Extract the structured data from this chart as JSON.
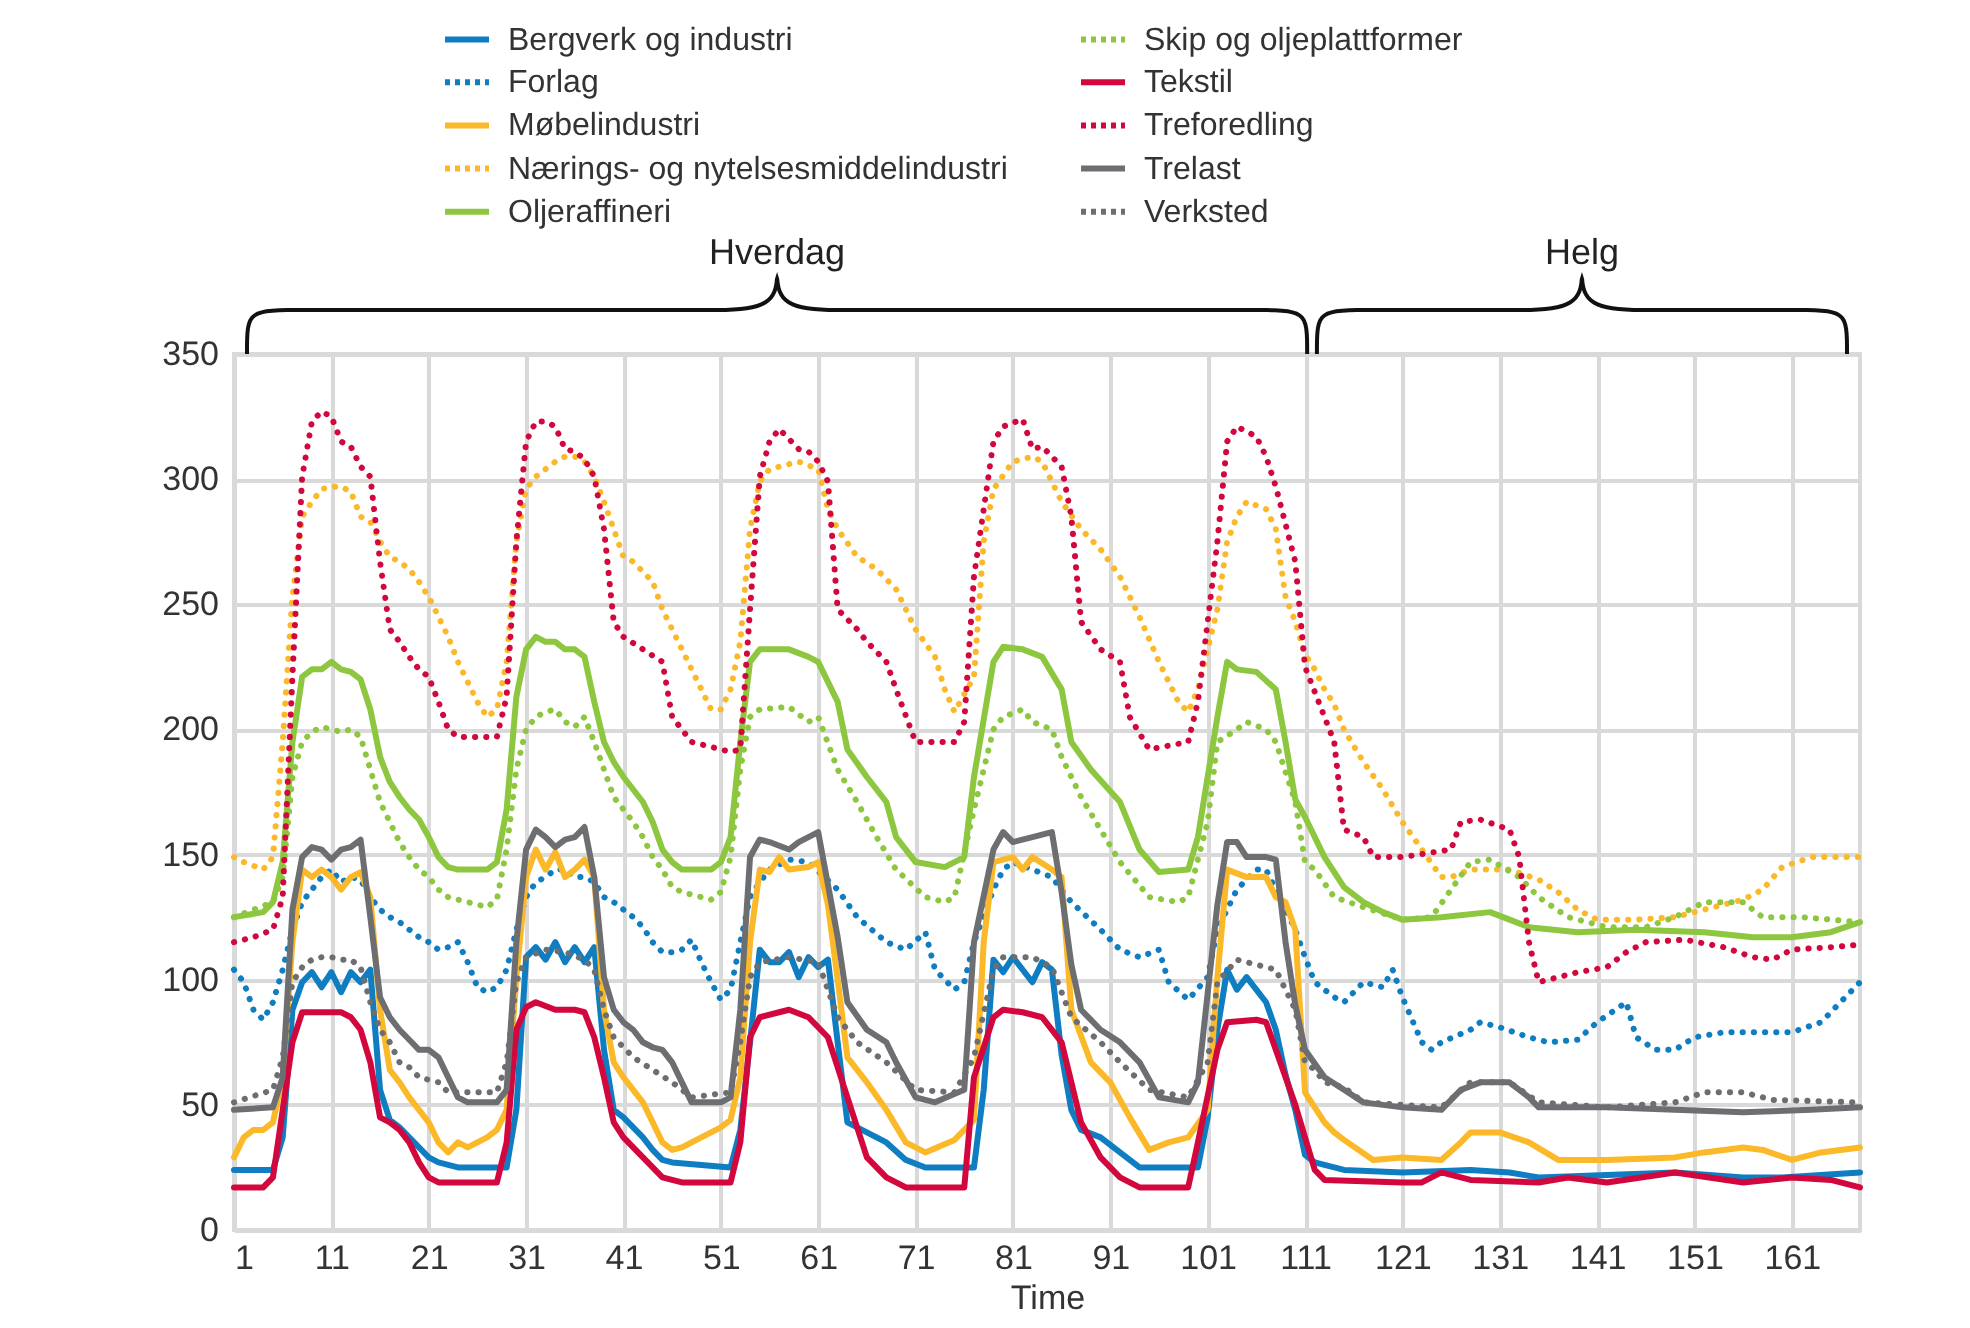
{
  "chart_data": {
    "type": "line",
    "xlabel": "Time",
    "xlim": [
      1,
      168
    ],
    "xticks": [
      1,
      11,
      21,
      31,
      41,
      51,
      61,
      71,
      81,
      91,
      101,
      111,
      121,
      131,
      141,
      151,
      161
    ],
    "ylim": [
      0,
      350
    ],
    "yticks": [
      0,
      50,
      100,
      150,
      200,
      250,
      300,
      350
    ],
    "grid": true,
    "legend": "top",
    "annotations": [
      "Hverdag",
      "Helg"
    ],
    "series": [
      {
        "name": "Bergverk og industri",
        "color": "#0e7dc2",
        "line_style": "solid",
        "x": [
          1,
          5,
          6,
          7,
          8,
          9,
          10,
          11,
          12,
          13,
          14,
          15,
          16,
          17,
          18,
          19,
          20,
          21,
          22,
          24,
          29,
          30,
          31,
          32,
          33,
          34,
          35,
          36,
          37,
          38,
          39,
          40,
          41,
          42,
          43,
          44,
          45,
          46,
          52,
          53,
          54,
          55,
          56,
          57,
          58,
          59,
          60,
          61,
          62,
          63,
          64,
          66,
          68,
          70,
          72,
          77,
          78,
          79,
          80,
          81,
          83,
          84,
          85,
          86,
          87,
          88,
          90,
          92,
          94,
          100,
          101,
          102,
          103,
          104,
          105,
          107,
          108,
          109,
          110,
          111,
          112,
          115,
          121,
          128,
          132,
          135,
          142,
          149,
          156,
          160,
          168
        ],
        "values": [
          24,
          24,
          37,
          88,
          99,
          103,
          97,
          103,
          95,
          103,
          99,
          104,
          56,
          44,
          41,
          37,
          33,
          29,
          27,
          25,
          25,
          48,
          109,
          113,
          108,
          115,
          107,
          113,
          107,
          113,
          72,
          48,
          45,
          41,
          37,
          32,
          28,
          27,
          25,
          40,
          75,
          112,
          107,
          107,
          111,
          101,
          109,
          105,
          108,
          75,
          43,
          39,
          35,
          28,
          25,
          25,
          56,
          108,
          103,
          109,
          99,
          107,
          104,
          70,
          48,
          40,
          37,
          31,
          25,
          25,
          45,
          80,
          104,
          96,
          101,
          91,
          80,
          62,
          48,
          30,
          27,
          24,
          23,
          24,
          23,
          21,
          22,
          23,
          21,
          21,
          23
        ]
      },
      {
        "name": "Forlag",
        "color": "#0e7dc2",
        "line_style": "dotted",
        "x": [
          1,
          2,
          3,
          4,
          5,
          6,
          7,
          8,
          9,
          10,
          11,
          12,
          13,
          14,
          15,
          16,
          17,
          18,
          19,
          20,
          21,
          22,
          23,
          24,
          25,
          26,
          27,
          28,
          29,
          30,
          31,
          32,
          33,
          34,
          35,
          36,
          37,
          38,
          39,
          40,
          41,
          42,
          43,
          44,
          45,
          46,
          47,
          48,
          49,
          50,
          51,
          52,
          53,
          54,
          55,
          56,
          58,
          60,
          63,
          65,
          68,
          70,
          72,
          73,
          75,
          76,
          77,
          79,
          80,
          81,
          83,
          85,
          87,
          90,
          92,
          94,
          96,
          97,
          99,
          101,
          102,
          104,
          106,
          107,
          108,
          110,
          111,
          112,
          114,
          115,
          117,
          119,
          120,
          121,
          123,
          124,
          125,
          128,
          129,
          131,
          134,
          136,
          139,
          141,
          144,
          145,
          147,
          149,
          151,
          154,
          158,
          161,
          164,
          166,
          168
        ],
        "values": [
          104,
          99,
          88,
          84,
          91,
          104,
          120,
          131,
          136,
          141,
          144,
          139,
          141,
          140,
          133,
          128,
          125,
          123,
          120,
          117,
          115,
          112,
          113,
          115,
          107,
          97,
          95,
          97,
          104,
          120,
          133,
          139,
          141,
          144,
          144,
          141,
          141,
          139,
          133,
          131,
          128,
          125,
          121,
          115,
          111,
          111,
          112,
          116,
          107,
          99,
          92,
          96,
          115,
          133,
          139,
          144,
          148,
          147,
          136,
          125,
          115,
          112,
          119,
          104,
          96,
          99,
          115,
          136,
          144,
          147,
          144,
          141,
          131,
          120,
          112,
          109,
          112,
          99,
          92,
          101,
          120,
          136,
          144,
          144,
          136,
          120,
          109,
          99,
          93,
          91,
          99,
          97,
          104,
          93,
          75,
          72,
          75,
          80,
          83,
          81,
          77,
          75,
          76,
          83,
          91,
          77,
          72,
          72,
          77,
          79,
          79,
          79,
          83,
          91,
          99
        ]
      },
      {
        "name": "Møbelindustri",
        "color": "#fbb829",
        "line_style": "solid",
        "x": [
          1,
          2,
          3,
          4,
          5,
          6,
          7,
          8,
          9,
          10,
          11,
          12,
          13,
          14,
          15,
          16,
          17,
          18,
          19,
          20,
          21,
          22,
          23,
          24,
          25,
          26,
          27,
          28,
          29,
          30,
          31,
          32,
          33,
          34,
          35,
          36,
          37,
          38,
          39,
          40,
          41,
          42,
          43,
          44,
          45,
          46,
          47,
          48,
          49,
          50,
          51,
          52,
          53,
          54,
          55,
          56,
          57,
          58,
          60,
          61,
          62,
          63,
          64,
          66,
          68,
          70,
          72,
          75,
          77,
          78,
          79,
          81,
          82,
          83,
          85,
          86,
          87,
          89,
          91,
          93,
          95,
          97,
          99,
          101,
          102,
          103,
          105,
          107,
          108,
          109,
          110,
          111,
          113,
          114,
          115,
          118,
          121,
          125,
          127,
          128,
          131,
          134,
          137,
          142,
          149,
          152,
          156,
          158,
          161,
          164,
          168
        ],
        "values": [
          29,
          37,
          40,
          40,
          43,
          61,
          115,
          144,
          141,
          144,
          141,
          136,
          141,
          143,
          133,
          88,
          64,
          59,
          53,
          48,
          43,
          35,
          31,
          35,
          33,
          35,
          37,
          40,
          48,
          101,
          141,
          152,
          144,
          151,
          141,
          144,
          148,
          141,
          88,
          67,
          61,
          56,
          51,
          43,
          35,
          32,
          33,
          35,
          37,
          39,
          41,
          44,
          61,
          115,
          144,
          143,
          149,
          144,
          145,
          147,
          130,
          100,
          69,
          59,
          48,
          35,
          31,
          36,
          44,
          115,
          147,
          149,
          144,
          149,
          144,
          141,
          88,
          67,
          59,
          45,
          32,
          35,
          37,
          48,
          101,
          144,
          141,
          141,
          133,
          131,
          120,
          55,
          43,
          39,
          36,
          28,
          29,
          28,
          35,
          39,
          39,
          35,
          28,
          28,
          29,
          31,
          33,
          32,
          28,
          31,
          33
        ]
      },
      {
        "name": "Nærings- og nytelsesmiddelindustri",
        "color": "#fbb829",
        "line_style": "dotted",
        "x": [
          1,
          2,
          4,
          5,
          6,
          7,
          8,
          9,
          10,
          11,
          12,
          13,
          14,
          15,
          16,
          17,
          18,
          19,
          20,
          21,
          22,
          23,
          24,
          26,
          27,
          28,
          29,
          30,
          31,
          32,
          33,
          34,
          35,
          36,
          37,
          38,
          39,
          40,
          41,
          42,
          43,
          44,
          45,
          46,
          47,
          48,
          49,
          50,
          51,
          52,
          53,
          54,
          55,
          56,
          57,
          59,
          61,
          62,
          63,
          65,
          67,
          69,
          71,
          73,
          74,
          75,
          77,
          78,
          79,
          81,
          83,
          84,
          86,
          88,
          90,
          92,
          94,
          96,
          98,
          99,
          100,
          102,
          103,
          104,
          105,
          107,
          108,
          109,
          110,
          111,
          112,
          113,
          114,
          115,
          117,
          119,
          121,
          123,
          125,
          126,
          128,
          132,
          135,
          137,
          139,
          141,
          145,
          149,
          152,
          156,
          158,
          160,
          163,
          168
        ],
        "values": [
          149,
          147,
          144,
          149,
          195,
          253,
          285,
          291,
          296,
          297,
          297,
          295,
          285,
          283,
          275,
          269,
          267,
          264,
          259,
          253,
          245,
          237,
          227,
          211,
          205,
          208,
          227,
          275,
          296,
          301,
          304,
          307,
          309,
          309,
          307,
          301,
          291,
          280,
          269,
          267,
          263,
          259,
          248,
          240,
          232,
          224,
          216,
          208,
          208,
          216,
          235,
          280,
          299,
          304,
          305,
          307,
          304,
          288,
          280,
          269,
          264,
          256,
          240,
          229,
          216,
          207,
          221,
          275,
          296,
          307,
          309,
          307,
          291,
          280,
          272,
          261,
          245,
          227,
          211,
          207,
          216,
          248,
          275,
          285,
          291,
          288,
          280,
          253,
          243,
          230,
          224,
          216,
          210,
          200,
          187,
          176,
          163,
          152,
          141,
          141,
          144,
          144,
          140,
          135,
          128,
          124,
          124,
          125,
          128,
          132,
          136,
          145,
          149,
          149
        ]
      },
      {
        "name": "Oljeraffineri",
        "color": "#8dc63f",
        "line_style": "solid",
        "x": [
          1,
          4,
          5,
          6,
          7,
          8,
          9,
          10,
          11,
          12,
          13,
          14,
          15,
          16,
          17,
          18,
          19,
          20,
          21,
          22,
          23,
          24,
          27,
          28,
          29,
          30,
          31,
          32,
          33,
          34,
          35,
          36,
          37,
          38,
          39,
          40,
          41,
          42,
          43,
          44,
          45,
          46,
          47,
          50,
          51,
          52,
          53,
          54,
          55,
          57,
          58,
          60,
          61,
          63,
          64,
          66,
          68,
          69,
          71,
          74,
          76,
          77,
          79,
          80,
          82,
          84,
          86,
          87,
          89,
          92,
          94,
          96,
          99,
          100,
          102,
          103,
          104,
          106,
          108,
          109,
          110,
          111,
          113,
          115,
          117,
          119,
          121,
          125,
          130,
          134,
          139,
          145,
          152,
          157,
          161,
          165,
          168
        ],
        "values": [
          125,
          127,
          131,
          147,
          195,
          221,
          224,
          224,
          227,
          224,
          223,
          220,
          208,
          189,
          179,
          173,
          168,
          164,
          157,
          149,
          145,
          144,
          144,
          147,
          168,
          213,
          232,
          237,
          235,
          235,
          232,
          232,
          229,
          211,
          195,
          187,
          181,
          176,
          171,
          163,
          152,
          147,
          144,
          144,
          147,
          157,
          195,
          227,
          232,
          232,
          232,
          229,
          227,
          211,
          192,
          181,
          171,
          157,
          147,
          145,
          149,
          181,
          227,
          233,
          232,
          229,
          216,
          195,
          184,
          171,
          152,
          143,
          144,
          157,
          205,
          227,
          224,
          223,
          216,
          195,
          172,
          165,
          149,
          137,
          131,
          127,
          124,
          125,
          127,
          121,
          119,
          120,
          119,
          117,
          117,
          119,
          123
        ]
      },
      {
        "name": "Skip og oljeplattformer",
        "color": "#8dc63f",
        "line_style": "dotted",
        "x": [
          1,
          5,
          6,
          7,
          8,
          9,
          10,
          11,
          12,
          13,
          14,
          15,
          16,
          17,
          18,
          19,
          20,
          21,
          22,
          23,
          24,
          25,
          27,
          28,
          29,
          30,
          31,
          32,
          33,
          34,
          35,
          36,
          37,
          38,
          39,
          40,
          41,
          42,
          43,
          44,
          45,
          46,
          47,
          50,
          51,
          52,
          53,
          54,
          55,
          58,
          60,
          61,
          63,
          65,
          67,
          69,
          72,
          74,
          75,
          77,
          79,
          80,
          82,
          83,
          85,
          86,
          88,
          90,
          92,
          95,
          98,
          99,
          101,
          102,
          104,
          105,
          107,
          108,
          110,
          111,
          112,
          114,
          117,
          121,
          124,
          126,
          128,
          130,
          133,
          135,
          138,
          142,
          146,
          149,
          152,
          156,
          158,
          162,
          168
        ],
        "values": [
          125,
          131,
          141,
          181,
          195,
          199,
          201,
          200,
          199,
          200,
          197,
          184,
          171,
          163,
          155,
          149,
          144,
          141,
          136,
          133,
          132,
          131,
          129,
          132,
          152,
          184,
          200,
          205,
          207,
          208,
          203,
          201,
          205,
          195,
          184,
          173,
          168,
          163,
          157,
          149,
          144,
          137,
          135,
          132,
          135,
          149,
          184,
          205,
          208,
          209,
          203,
          205,
          184,
          171,
          157,
          144,
          133,
          131,
          133,
          168,
          200,
          205,
          208,
          203,
          200,
          189,
          173,
          160,
          147,
          133,
          131,
          133,
          163,
          195,
          200,
          203,
          200,
          195,
          171,
          147,
          144,
          133,
          129,
          124,
          125,
          136,
          147,
          148,
          141,
          133,
          125,
          121,
          121,
          125,
          131,
          131,
          125,
          125,
          123
        ]
      },
      {
        "name": "Tekstil",
        "color": "#d2073e",
        "line_style": "solid",
        "x": [
          1,
          4,
          5,
          6,
          7,
          8,
          12,
          13,
          14,
          15,
          16,
          17,
          18,
          19,
          20,
          21,
          22,
          28,
          29,
          30,
          31,
          32,
          34,
          36,
          37,
          38,
          39,
          40,
          41,
          43,
          44,
          45,
          47,
          52,
          53,
          54,
          55,
          58,
          60,
          62,
          64,
          66,
          68,
          70,
          76,
          77,
          79,
          80,
          82,
          84,
          86,
          88,
          90,
          92,
          94,
          99,
          100,
          102,
          103,
          106,
          107,
          108,
          110,
          112,
          113,
          121,
          123,
          125,
          128,
          135,
          138,
          142,
          149,
          156,
          161,
          165,
          168
        ],
        "values": [
          17,
          17,
          21,
          48,
          75,
          87,
          87,
          85,
          80,
          67,
          45,
          43,
          40,
          35,
          27,
          21,
          19,
          19,
          35,
          80,
          89,
          91,
          88,
          88,
          87,
          77,
          61,
          43,
          37,
          29,
          25,
          21,
          19,
          19,
          35,
          77,
          85,
          88,
          85,
          77,
          53,
          29,
          21,
          17,
          17,
          61,
          85,
          88,
          87,
          85,
          75,
          43,
          29,
          21,
          17,
          17,
          35,
          72,
          83,
          84,
          83,
          72,
          50,
          24,
          20,
          19,
          19,
          23,
          20,
          19,
          21,
          19,
          23,
          19,
          21,
          20,
          17
        ]
      },
      {
        "name": "Treforedling",
        "color": "#d2073e",
        "line_style": "dotted",
        "x": [
          1,
          3,
          5,
          6,
          7,
          8,
          9,
          10,
          11,
          12,
          13,
          14,
          15,
          16,
          17,
          18,
          19,
          20,
          21,
          22,
          23,
          24,
          25,
          28,
          29,
          30,
          31,
          32,
          33,
          34,
          35,
          36,
          37,
          38,
          39,
          40,
          41,
          43,
          45,
          46,
          48,
          52,
          53,
          54,
          55,
          56,
          57,
          59,
          60,
          61,
          62,
          63,
          65,
          66,
          68,
          69,
          71,
          75,
          76,
          77,
          79,
          80,
          82,
          83,
          84,
          86,
          87,
          88,
          90,
          92,
          93,
          95,
          99,
          100,
          102,
          103,
          104,
          106,
          107,
          108,
          110,
          111,
          113,
          114,
          115,
          117,
          118,
          121,
          126,
          127,
          129,
          132,
          133,
          134,
          135,
          139,
          142,
          144,
          146,
          150,
          154,
          157,
          159,
          161,
          165,
          168
        ],
        "values": [
          115,
          117,
          120,
          133,
          221,
          301,
          323,
          327,
          325,
          315,
          313,
          305,
          301,
          267,
          240,
          235,
          229,
          224,
          221,
          211,
          200,
          197,
          197,
          197,
          213,
          275,
          315,
          323,
          323,
          321,
          312,
          311,
          308,
          301,
          280,
          243,
          237,
          232,
          227,
          205,
          195,
          191,
          192,
          248,
          301,
          315,
          320,
          312,
          311,
          307,
          299,
          248,
          240,
          235,
          227,
          216,
          195,
          195,
          203,
          261,
          315,
          321,
          324,
          312,
          313,
          305,
          285,
          243,
          232,
          227,
          205,
          192,
          195,
          211,
          275,
          315,
          321,
          317,
          309,
          297,
          267,
          225,
          205,
          195,
          160,
          157,
          149,
          149,
          152,
          163,
          164,
          160,
          149,
          115,
          99,
          103,
          105,
          111,
          115,
          116,
          113,
          109,
          108,
          112,
          113,
          114
        ]
      },
      {
        "name": "Trelast",
        "color": "#6d6e71",
        "line_style": "solid",
        "x": [
          1,
          5,
          6,
          7,
          8,
          9,
          10,
          11,
          12,
          13,
          14,
          15,
          16,
          17,
          18,
          19,
          20,
          21,
          22,
          23,
          24,
          25,
          28,
          29,
          30,
          31,
          32,
          33,
          34,
          35,
          36,
          37,
          38,
          39,
          40,
          41,
          42,
          43,
          44,
          45,
          46,
          47,
          48,
          51,
          52,
          53,
          54,
          55,
          56,
          58,
          59,
          61,
          63,
          64,
          66,
          68,
          69,
          71,
          73,
          76,
          77,
          79,
          80,
          81,
          83,
          85,
          86,
          87,
          88,
          90,
          92,
          94,
          96,
          99,
          100,
          102,
          103,
          104,
          105,
          107,
          108,
          109,
          110,
          111,
          113,
          115,
          117,
          121,
          125,
          127,
          129,
          132,
          134,
          135,
          142,
          149,
          156,
          163,
          168
        ],
        "values": [
          48,
          49,
          61,
          128,
          149,
          153,
          152,
          148,
          152,
          153,
          156,
          125,
          93,
          85,
          80,
          76,
          72,
          72,
          69,
          61,
          53,
          51,
          51,
          56,
          115,
          152,
          160,
          157,
          153,
          156,
          157,
          161,
          141,
          101,
          88,
          83,
          80,
          75,
          73,
          72,
          67,
          59,
          51,
          51,
          53,
          88,
          149,
          156,
          155,
          152,
          155,
          159,
          117,
          91,
          80,
          75,
          67,
          53,
          51,
          56,
          115,
          152,
          159,
          155,
          157,
          159,
          135,
          106,
          88,
          80,
          75,
          67,
          53,
          51,
          59,
          130,
          155,
          155,
          149,
          149,
          148,
          115,
          90,
          72,
          61,
          56,
          51,
          49,
          48,
          56,
          59,
          59,
          53,
          49,
          49,
          48,
          47,
          48,
          49
        ]
      },
      {
        "name": "Verksted",
        "color": "#6d6e71",
        "line_style": "dotted",
        "x": [
          1,
          5,
          6,
          7,
          8,
          9,
          10,
          11,
          12,
          13,
          14,
          15,
          16,
          17,
          18,
          19,
          20,
          22,
          23,
          24,
          28,
          29,
          30,
          31,
          33,
          35,
          37,
          38,
          39,
          40,
          42,
          44,
          46,
          48,
          52,
          53,
          54,
          55,
          58,
          61,
          63,
          65,
          68,
          71,
          75,
          77,
          79,
          80,
          83,
          85,
          87,
          90,
          92,
          95,
          99,
          101,
          102,
          104,
          107,
          108,
          110,
          111,
          112,
          113,
          115,
          117,
          125,
          128,
          132,
          135,
          142,
          149,
          152,
          156,
          159,
          168
        ],
        "values": [
          51,
          56,
          69,
          99,
          105,
          108,
          109,
          109,
          108,
          108,
          105,
          91,
          80,
          75,
          67,
          65,
          61,
          59,
          55,
          55,
          55,
          67,
          99,
          109,
          112,
          111,
          108,
          104,
          88,
          77,
          69,
          64,
          59,
          53,
          55,
          75,
          101,
          107,
          109,
          107,
          85,
          75,
          67,
          56,
          55,
          69,
          104,
          109,
          109,
          105,
          85,
          75,
          67,
          56,
          53,
          67,
          99,
          108,
          105,
          104,
          88,
          67,
          64,
          59,
          57,
          51,
          49,
          59,
          59,
          51,
          49,
          51,
          55,
          55,
          52,
          51
        ]
      }
    ]
  }
}
